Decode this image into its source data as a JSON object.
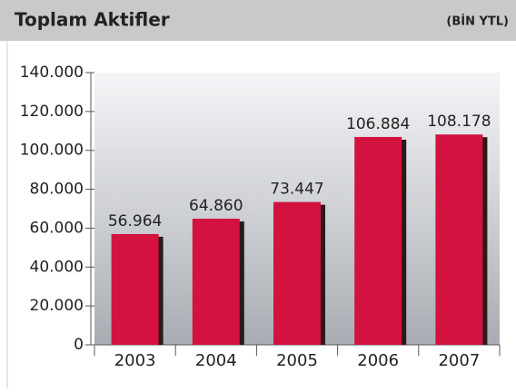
{
  "chart_data": {
    "type": "bar",
    "title": "Toplam Aktifler",
    "subtitle": "(BİN YTL)",
    "categories": [
      "2003",
      "2004",
      "2005",
      "2006",
      "2007"
    ],
    "values": [
      56964,
      64860,
      73447,
      106884,
      108178
    ],
    "value_labels": [
      "56.964",
      "64.860",
      "73.447",
      "106.884",
      "108.178"
    ],
    "color": "#d3123f",
    "ylim": [
      0,
      140000
    ],
    "yticks": [
      0,
      {
        "value": 20000,
        "label": "20.000"
      },
      {
        "value": 40000,
        "label": "40.000"
      },
      {
        "value": 60000,
        "label": "60.000"
      },
      {
        "value": 80000,
        "label": "80.000"
      },
      {
        "value": 100000,
        "label": "100.000"
      },
      {
        "value": 120000,
        "label": "120.000"
      },
      {
        "value": 140000,
        "label": "140.000"
      }
    ]
  }
}
